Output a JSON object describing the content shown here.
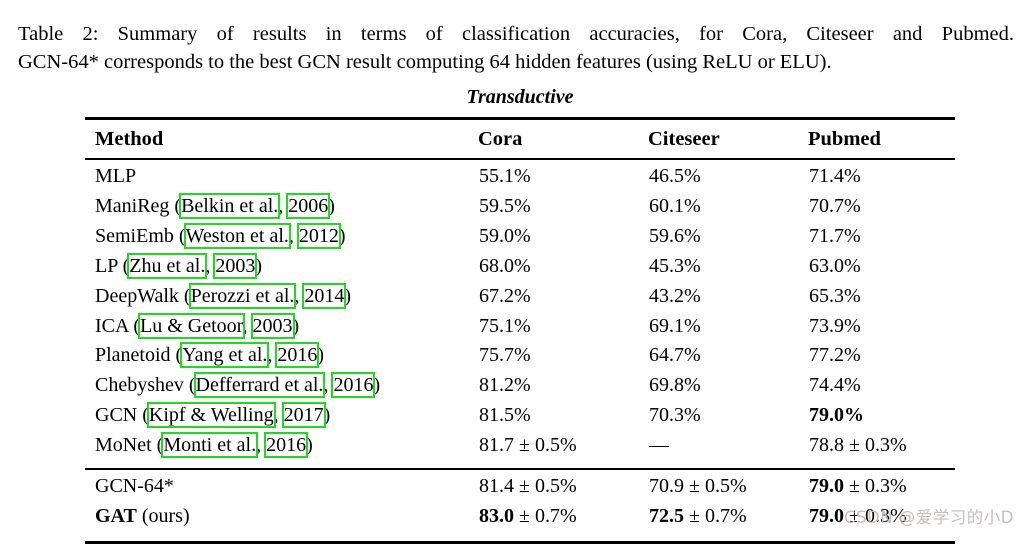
{
  "caption": {
    "line1": "Table 2: Summary of results in terms of classification accuracies, for Cora, Citeseer and Pubmed.",
    "line2": "GCN-64* corresponds to the best GCN result computing 64 hidden features (using ReLU or ELU)."
  },
  "table": {
    "title": "Transductive",
    "headers": [
      "Method",
      "Cora",
      "Citeseer",
      "Pubmed"
    ],
    "baseline_rows": [
      {
        "method": [
          {
            "t": "MLP"
          }
        ],
        "values": [
          [
            {
              "t": "55.1%"
            }
          ],
          [
            {
              "t": "46.5%"
            }
          ],
          [
            {
              "t": "71.4%"
            }
          ]
        ]
      },
      {
        "method": [
          {
            "t": "ManiReg ("
          },
          {
            "t": "Belkin et al.",
            "link": true
          },
          {
            "t": ", "
          },
          {
            "t": "2006",
            "link": true
          },
          {
            "t": ")"
          }
        ],
        "values": [
          [
            {
              "t": "59.5%"
            }
          ],
          [
            {
              "t": "60.1%"
            }
          ],
          [
            {
              "t": "70.7%"
            }
          ]
        ]
      },
      {
        "method": [
          {
            "t": "SemiEmb ("
          },
          {
            "t": "Weston et al.",
            "link": true
          },
          {
            "t": ", "
          },
          {
            "t": "2012",
            "link": true
          },
          {
            "t": ")"
          }
        ],
        "values": [
          [
            {
              "t": "59.0%"
            }
          ],
          [
            {
              "t": "59.6%"
            }
          ],
          [
            {
              "t": "71.7%"
            }
          ]
        ]
      },
      {
        "method": [
          {
            "t": "LP ("
          },
          {
            "t": "Zhu et al.",
            "link": true
          },
          {
            "t": ", "
          },
          {
            "t": "2003",
            "link": true
          },
          {
            "t": ")"
          }
        ],
        "values": [
          [
            {
              "t": "68.0%"
            }
          ],
          [
            {
              "t": "45.3%"
            }
          ],
          [
            {
              "t": "63.0%"
            }
          ]
        ]
      },
      {
        "method": [
          {
            "t": "DeepWalk ("
          },
          {
            "t": "Perozzi et al.",
            "link": true
          },
          {
            "t": ", "
          },
          {
            "t": "2014",
            "link": true
          },
          {
            "t": ")"
          }
        ],
        "values": [
          [
            {
              "t": "67.2%"
            }
          ],
          [
            {
              "t": "43.2%"
            }
          ],
          [
            {
              "t": "65.3%"
            }
          ]
        ]
      },
      {
        "method": [
          {
            "t": "ICA ("
          },
          {
            "t": "Lu & Getoor",
            "link": true
          },
          {
            "t": ", "
          },
          {
            "t": "2003",
            "link": true
          },
          {
            "t": ")"
          }
        ],
        "values": [
          [
            {
              "t": "75.1%"
            }
          ],
          [
            {
              "t": "69.1%"
            }
          ],
          [
            {
              "t": "73.9%"
            }
          ]
        ]
      },
      {
        "method": [
          {
            "t": "Planetoid ("
          },
          {
            "t": "Yang et al.",
            "link": true
          },
          {
            "t": ", "
          },
          {
            "t": "2016",
            "link": true
          },
          {
            "t": ")"
          }
        ],
        "values": [
          [
            {
              "t": "75.7%"
            }
          ],
          [
            {
              "t": "64.7%"
            }
          ],
          [
            {
              "t": "77.2%"
            }
          ]
        ]
      },
      {
        "method": [
          {
            "t": "Chebyshev ("
          },
          {
            "t": "Defferrard et al.",
            "link": true
          },
          {
            "t": ", "
          },
          {
            "t": "2016",
            "link": true
          },
          {
            "t": ")"
          }
        ],
        "values": [
          [
            {
              "t": "81.2%"
            }
          ],
          [
            {
              "t": "69.8%"
            }
          ],
          [
            {
              "t": "74.4%"
            }
          ]
        ]
      },
      {
        "method": [
          {
            "t": "GCN ("
          },
          {
            "t": "Kipf & Welling",
            "link": true
          },
          {
            "t": ", "
          },
          {
            "t": "2017",
            "link": true
          },
          {
            "t": ")"
          }
        ],
        "values": [
          [
            {
              "t": "81.5%"
            }
          ],
          [
            {
              "t": "70.3%"
            }
          ],
          [
            {
              "t": "79.0%",
              "b": true
            }
          ]
        ]
      },
      {
        "method": [
          {
            "t": "MoNet ("
          },
          {
            "t": "Monti et al.",
            "link": true
          },
          {
            "t": ", "
          },
          {
            "t": "2016",
            "link": true
          },
          {
            "t": ")"
          }
        ],
        "values": [
          [
            {
              "t": "81.7 ± 0.5%"
            }
          ],
          [
            {
              "t": "—"
            }
          ],
          [
            {
              "t": "78.8 ± 0.3%"
            }
          ]
        ]
      }
    ],
    "final_rows": [
      {
        "method": [
          {
            "t": "GCN-64*"
          }
        ],
        "values": [
          [
            {
              "t": "81.4 ± 0.5%"
            }
          ],
          [
            {
              "t": "70.9 ± 0.5%"
            }
          ],
          [
            {
              "t": "79.0",
              "b": true
            },
            {
              "t": " ± 0.3%"
            }
          ]
        ]
      },
      {
        "method": [
          {
            "t": "GAT",
            "b": true
          },
          {
            "t": " (ours)"
          }
        ],
        "values": [
          [
            {
              "t": "83.0",
              "b": true
            },
            {
              "t": " ± 0.7%"
            }
          ],
          [
            {
              "t": "72.5",
              "b": true
            },
            {
              "t": " ± 0.7%"
            }
          ],
          [
            {
              "t": "79.0",
              "b": true
            },
            {
              "t": " ± 0.3%"
            }
          ]
        ]
      }
    ]
  },
  "watermark": {
    "text": "CSDN @爱学习的小D"
  },
  "colors": {
    "citation_box": "#22d822",
    "watermark": "#c6bdbd"
  }
}
